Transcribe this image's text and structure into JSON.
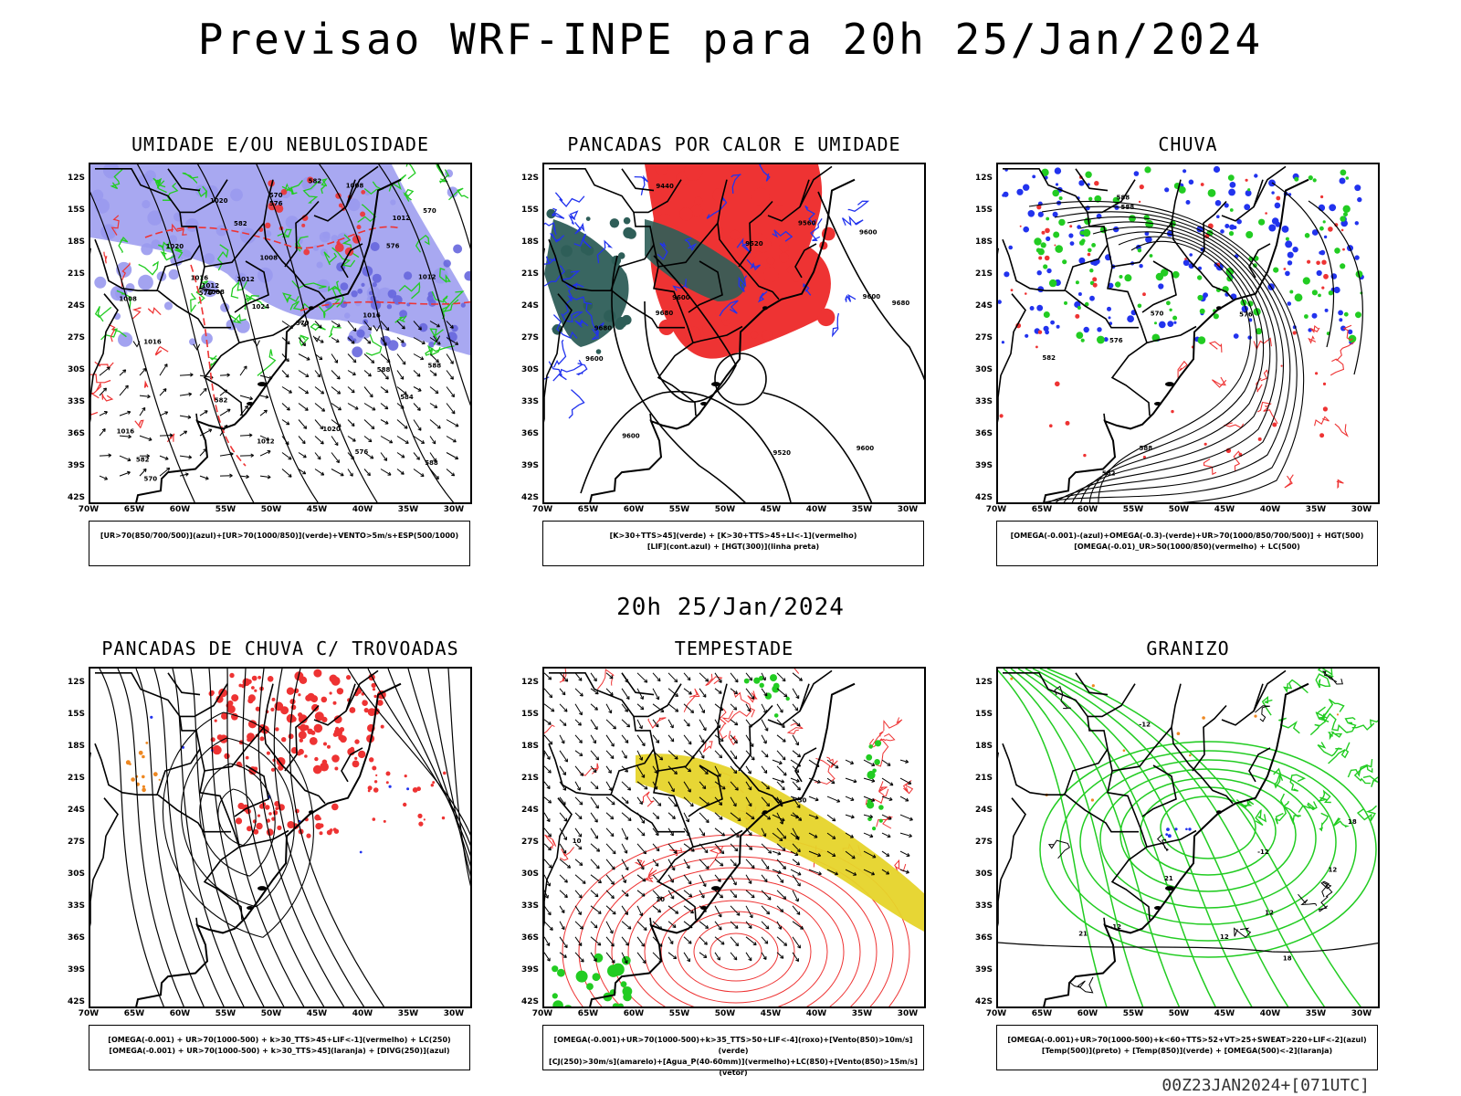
{
  "title": "Previsao WRF-INPE  para 20h 25/Jan/2024",
  "mid_title": "20h 25/Jan/2024",
  "footer": "00Z23JAN2024+[071UTC]",
  "lat_ticks": [
    "12S",
    "15S",
    "18S",
    "21S",
    "24S",
    "27S",
    "30S",
    "33S",
    "36S",
    "39S",
    "42S"
  ],
  "lon_ticks": [
    "70W",
    "65W",
    "60W",
    "55W",
    "50W",
    "45W",
    "40W",
    "35W",
    "30W"
  ],
  "colors": {
    "green": "#22cc22",
    "red": "#ee3333",
    "blue": "#2233ee",
    "lavender": "#9999ee",
    "teal": "#2e5e58",
    "yellow": "#e6d42a",
    "orange": "#ee8822"
  },
  "panels": [
    {
      "title": "UMIDADE E/OU NEBULOSIDADE",
      "legend": [
        "[UR>70(850/700/500)](azul)+[UR>70(1000/850)](verde)+VENTO>5m/s+ESP(500/1000)"
      ],
      "contour_labels": [
        "1012",
        "1008",
        "1008",
        "1008",
        "1012",
        "1020",
        "1020",
        "1012",
        "1016",
        "1016",
        "1020",
        "1024",
        "1016",
        "1012",
        "1012",
        "1016",
        "1008",
        "576",
        "576",
        "576",
        "570",
        "570",
        "576",
        "588",
        "582",
        "582",
        "588",
        "582",
        "588",
        "582",
        "584",
        "570",
        "570"
      ]
    },
    {
      "title": "PANCADAS POR CALOR E UMIDADE",
      "legend": [
        "[K>30+TTS>45](verde)  +  [K>30+TTS>45+LI<-1](vermelho)",
        "[LIF](cont.azul)  +  [HGT(300)](linha preta)"
      ],
      "contour_labels": [
        "9680",
        "9680",
        "9560",
        "9600",
        "9600",
        "9520",
        "9440",
        "9600",
        "9600",
        "9520",
        "9600",
        "9680",
        "9600"
      ]
    },
    {
      "title": "CHUVA",
      "legend": [
        "[OMEGA(-0.001)-(azul)+OMEGA(-0.3)-(verde)+UR>70(1000/850/700/500)]  +  HGT(500)",
        "[OMEGA(-0.01)_UR>50(1000/850)(vermelho)  +  LC(500)"
      ],
      "contour_labels": [
        "576",
        "576",
        "588",
        "588",
        "570",
        "582",
        "582",
        "588"
      ]
    },
    {
      "title": "PANCADAS DE CHUVA C/ TROVOADAS",
      "legend": [
        "[OMEGA(-0.001)  +  UR>70(1000-500)  +  k>30_TTS>45+LIF<-1](vermelho)  +  LC(250)",
        "[OMEGA(-0.001)  +  UR>70(1000-500)  +  k>30_TTS>45](laranja)  +  [DIVG(250)](azul)"
      ],
      "contour_labels": []
    },
    {
      "title": "TEMPESTADE",
      "legend": [
        "[OMEGA(-0.001)+UR>70(1000-500)+k>35_TTS>50+LIF<-4](roxo)+[Vento(850)>10m/s](verde)",
        "[CJ(250)>30m/s](amarelo)+[Agua_P(40-60mm)](vermelho)+LC(850)+[Vento(850)>15m/s](vetor)"
      ],
      "contour_labels": [
        "10",
        "10",
        "30"
      ]
    },
    {
      "title": "GRANIZO",
      "legend": [
        "[OMEGA(-0.001)+UR>70(1000-500)+k<60+TTS>52+VT>25+SWEAT>220+LIF<-2](azul)",
        "[Temp(500)](preto)  +  [Temp(850)](verde)  +  [OMEGA(500)<-2](laranja)"
      ],
      "contour_labels": [
        "-12",
        "-12",
        "-12",
        "12",
        "12",
        "21",
        "21",
        "18",
        "18",
        "12"
      ]
    }
  ]
}
